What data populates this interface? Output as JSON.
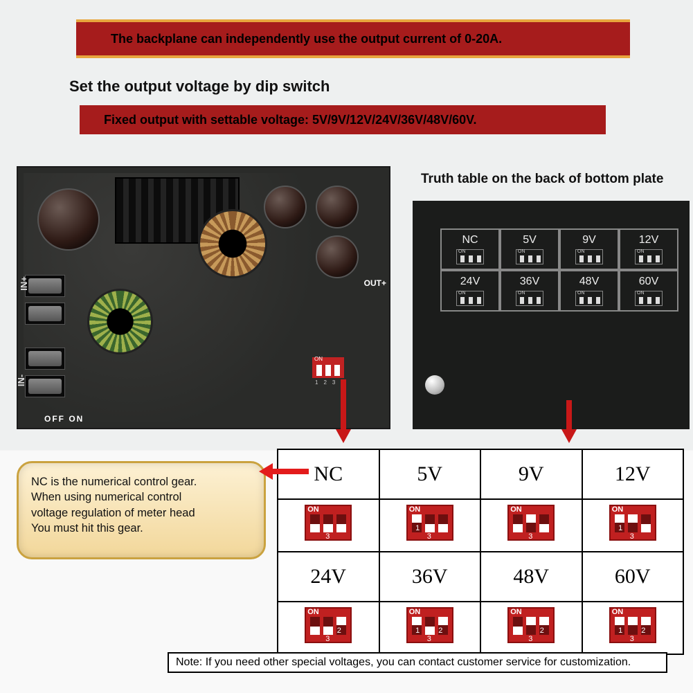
{
  "banner1": "The backplane can independently use the output current of 0-20A.",
  "line2": "Set the output voltage by dip switch",
  "banner2": "Fixed output with settable voltage: 5V/9V/12V/24V/36V/48V/60V.",
  "truth_label": "Truth table on the back of bottom plate",
  "pcb_labels": {
    "in_plus": "IN+",
    "in_minus": "IN-",
    "offon": "OFF  ON",
    "out": "OUT+"
  },
  "truth_cells": [
    "NC",
    "5V",
    "9V",
    "12V",
    "24V",
    "36V",
    "48V",
    "60V"
  ],
  "big_table": {
    "row1": [
      "NC",
      "5V",
      "9V",
      "12V"
    ],
    "row2": [
      "24V",
      "36V",
      "48V",
      "60V"
    ],
    "dip_on_label": "ON",
    "dip_nums": "123",
    "dips_row1": [
      {
        "p1": "dn",
        "p2": "dn",
        "p3": "dn"
      },
      {
        "p1": "up",
        "p2": "dn",
        "p3": "dn"
      },
      {
        "p1": "dn",
        "p2": "up",
        "p3": "dn"
      },
      {
        "p1": "up",
        "p2": "up",
        "p3": "dn"
      }
    ],
    "dips_row2": [
      {
        "p1": "dn",
        "p2": "dn",
        "p3": "up"
      },
      {
        "p1": "up",
        "p2": "dn",
        "p3": "up"
      },
      {
        "p1": "dn",
        "p2": "up",
        "p3": "up"
      },
      {
        "p1": "up",
        "p2": "up",
        "p3": "up"
      }
    ]
  },
  "bubble": {
    "l1": "NC is the numerical control gear.",
    "l2": " When using numerical control",
    "l3": "voltage regulation of meter head",
    "l4": "You must hit this gear."
  },
  "note": "Note: If you need other special voltages, you can contact customer service for customization.",
  "colors": {
    "banner_bg": "#a61c1c",
    "banner_border": "#e8a53d",
    "arrow": "#c81818",
    "nc_arrow": "#e31b1b",
    "dip_red": "#c02020",
    "bubble_top": "#fdf1d4",
    "bubble_bottom": "#f2d79a",
    "bubble_border": "#caa23f",
    "pcb": "#2a2b29",
    "truth_bg": "#1b1c1b"
  }
}
